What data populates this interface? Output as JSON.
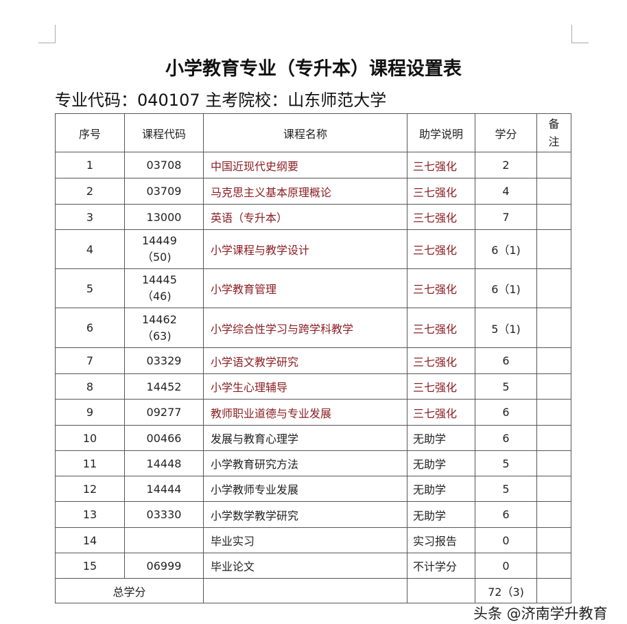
{
  "title": "小学教育专业（专升本）课程设置表",
  "subtitle": "专业代码：040107 主考院校：山东师范大学",
  "headers": [
    "序号",
    "课程代码",
    "课程名称",
    "助学说明",
    "学分",
    "备注"
  ],
  "rows": [
    [
      "1",
      "03708",
      "中国近现代史纲要",
      "三七强化",
      "2",
      ""
    ],
    [
      "2",
      "03709",
      "马克思主义基本原理概论",
      "三七强化",
      "4",
      ""
    ],
    [
      "3",
      "13000",
      "英语（专升本）",
      "三七强化",
      "7",
      ""
    ],
    [
      "4",
      "14449（50)",
      "小学课程与教学设计",
      "三七强化",
      "6（1)",
      ""
    ],
    [
      "5",
      "14445（46)",
      "小学教育管理",
      "三七强化",
      "6（1)",
      ""
    ],
    [
      "6",
      "14462（63)",
      "小学综合性学习与跨学科教学",
      "三七强化",
      "5（1)",
      ""
    ],
    [
      "7",
      "03329",
      "小学语文教学研究",
      "三七强化",
      "6",
      ""
    ],
    [
      "8",
      "14452",
      "小学生心理辅导",
      "三七强化",
      "5",
      ""
    ],
    [
      "9",
      "09277",
      "教师职业道德与专业发展",
      "三七强化",
      "6",
      ""
    ],
    [
      "10",
      "00466",
      "发展与教育心理学",
      "无助学",
      "6",
      ""
    ],
    [
      "11",
      "14448",
      "小学教育研究方法",
      "无助学",
      "5",
      ""
    ],
    [
      "12",
      "14444",
      "小学教师专业发展",
      "无助学",
      "5",
      ""
    ],
    [
      "13",
      "03330",
      "小学数学教学研究",
      "无助学",
      "6",
      ""
    ],
    [
      "14",
      "",
      "毕业实习",
      "实习报告",
      "0",
      ""
    ],
    [
      "15",
      "06999",
      "毕业论文",
      "不计学分",
      "0",
      ""
    ]
  ],
  "total": {
    "label": "总学分",
    "name": "",
    "help": "",
    "credits": "72（3)",
    "note": ""
  },
  "watermark": "头条 @济南学升教育",
  "colors": {
    "highlight": "#8b1e22"
  }
}
